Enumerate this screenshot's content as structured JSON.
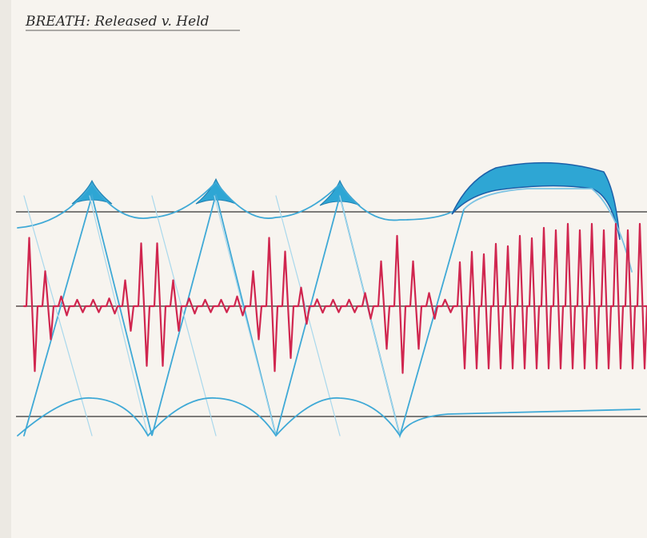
{
  "title": "BREATH: Released v. Held"
}
